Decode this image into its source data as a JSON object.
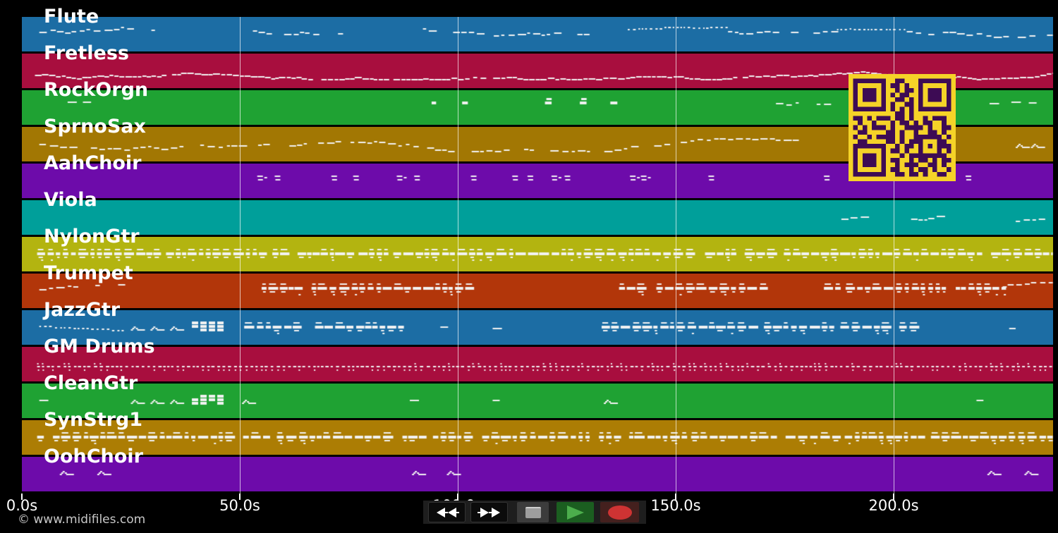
{
  "copyright": {
    "text": "© www.midifiles.com",
    "color": "#c8c8c8"
  },
  "axis": {
    "tick_color": "#ffffff",
    "label_color": "#ffffff",
    "gridline_color": "rgba(255,255,255,0.68)",
    "ticks": [
      {
        "value": 0,
        "label": "0.0s"
      },
      {
        "value": 50,
        "label": "50.0s"
      },
      {
        "value": 100,
        "label": "100.0s"
      },
      {
        "value": 150,
        "label": "150.0s"
      },
      {
        "value": 200,
        "label": "200.0s"
      }
    ]
  },
  "transport": {
    "strip_color": "#1e1e1e",
    "glyph_color": "#ffffff",
    "stop_tile": "#3c3c3c",
    "stop_square": "#9e9e9e",
    "play_tile": "#1b5e20",
    "play_glyph": "#4cae4c",
    "record_tile": "#44201e",
    "record_glyph": "#ce3333",
    "buttons": [
      {
        "id": "rewind"
      },
      {
        "id": "fast-forward"
      },
      {
        "id": "stop"
      },
      {
        "id": "play"
      },
      {
        "id": "record"
      }
    ]
  },
  "qr": {
    "light": "#f5d328",
    "dark": "#3d0b54",
    "matrix": [
      "111111100110001111111",
      "100000101101001000001",
      "101110100101101011101",
      "101110101011001011101",
      "101110100110101011101",
      "100000101001101000001",
      "111111101010101111111",
      "000000000110100000000",
      "110101110110100101110",
      "010010001011010110010",
      "101011101001111010011",
      "011000011010010011010",
      "100101111010011111101",
      "011000011010111000110",
      "111111100101101010111",
      "100000101101001000101",
      "101110100010111111110",
      "101110101100101101011",
      "101110100101110011010",
      "100000101100101101001",
      "111111100110110100110"
    ]
  },
  "chart_data": {
    "type": "midi-track-timeline",
    "x_unit": "seconds",
    "x_range": [
      0,
      236.5
    ],
    "x_tick_values": [
      0,
      50,
      100,
      150,
      200
    ],
    "x_tick_labels": [
      "0.0s",
      "50.0s",
      "100.0s",
      "150.0s",
      "200.0s"
    ],
    "grid": true,
    "note_color": "#f2f2f2",
    "tracks": [
      {
        "name": "Flute",
        "color": "#1c6da4",
        "cy": 0.38,
        "segments": [
          {
            "kind": "melody",
            "t": [
              4,
              31
            ]
          },
          {
            "kind": "melody",
            "t": [
              53,
              74
            ]
          },
          {
            "kind": "melody",
            "t": [
              92,
              131
            ]
          },
          {
            "kind": "dots",
            "t": [
              139,
              162
            ]
          },
          {
            "kind": "melody",
            "t": [
              162,
              186
            ]
          },
          {
            "kind": "dots",
            "t": [
              187,
              203
            ]
          },
          {
            "kind": "melody",
            "t": [
              203,
              236
            ]
          }
        ]
      },
      {
        "name": "Fretless",
        "color": "#a80e3e",
        "cy": 0.62,
        "segments": [
          {
            "kind": "bassline",
            "t": [
              3,
              236.5
            ]
          }
        ]
      },
      {
        "name": "RockOrgn",
        "color": "#1fa233",
        "cy": 0.33,
        "segments": [
          {
            "kind": "sparse",
            "times": [
              10.5,
              14
            ]
          },
          {
            "kind": "blocks",
            "times": [
              94,
              101,
              120,
              128,
              135
            ]
          },
          {
            "kind": "melody",
            "t": [
              173,
              186
            ]
          },
          {
            "kind": "sparse",
            "times": [
              222,
              227,
              231
            ]
          }
        ]
      },
      {
        "name": "SprnoSax",
        "color": "#a27703",
        "cy": 0.52,
        "segments": [
          {
            "kind": "melody",
            "t": [
              4,
              178
            ]
          },
          {
            "kind": "curls",
            "times": [
              228,
              231.5
            ]
          }
        ]
      },
      {
        "name": "AahChoir",
        "color": "#6d0baa",
        "cy": 0.42,
        "segments": [
          {
            "kind": "chords",
            "times": [
              54,
              58,
              71,
              76,
              86,
              90,
              103,
              112.5,
              116,
              121.5,
              124.5,
              139.5,
              142,
              157.5,
              184,
              190,
              212,
              216.5
            ]
          }
        ]
      },
      {
        "name": "Viola",
        "color": "#009f9a",
        "cy": 0.58,
        "segments": [
          {
            "kind": "melody",
            "t": [
              188,
              194
            ]
          },
          {
            "kind": "melody",
            "t": [
              204,
              210
            ]
          },
          {
            "kind": "melody",
            "t": [
              228,
              235.5
            ]
          }
        ]
      },
      {
        "name": "NylonGtr",
        "color": "#b3b410",
        "cy": 0.48,
        "segments": [
          {
            "kind": "dense",
            "t": [
              3.5,
              236.5
            ]
          }
        ]
      },
      {
        "name": "Trumpet",
        "color": "#b2360a",
        "cy": 0.42,
        "segments": [
          {
            "kind": "melody",
            "t": [
              4,
              23
            ]
          },
          {
            "kind": "dense",
            "t": [
              55,
              103
            ]
          },
          {
            "kind": "dense",
            "t": [
              137,
              170
            ]
          },
          {
            "kind": "dense",
            "t": [
              184,
              225
            ]
          },
          {
            "kind": "melody",
            "t": [
              225,
              236.5
            ]
          }
        ]
      },
      {
        "name": "JazzGtr",
        "color": "#1c6da4",
        "cy": 0.48,
        "segments": [
          {
            "kind": "dots",
            "t": [
              4,
              24
            ]
          },
          {
            "kind": "curls",
            "times": [
              25,
              29.5,
              34
            ]
          },
          {
            "kind": "blockcluster",
            "times": [
              39
            ]
          },
          {
            "kind": "dense",
            "t": [
              51,
              87
            ]
          },
          {
            "kind": "sparse",
            "times": [
              96,
              108
            ]
          },
          {
            "kind": "dense",
            "t": [
              133,
              204
            ]
          },
          {
            "kind": "sparse",
            "times": [
              226.5
            ]
          }
        ]
      },
      {
        "name": "GM Drums",
        "color": "#a80e3e",
        "cy": 0.55,
        "segments": [
          {
            "kind": "drums",
            "t": [
              3.5,
              236.5
            ]
          }
        ]
      },
      {
        "name": "CleanGtr",
        "color": "#1fa233",
        "cy": 0.48,
        "segments": [
          {
            "kind": "sparse",
            "times": [
              4
            ]
          },
          {
            "kind": "curls",
            "times": [
              25,
              29.5,
              34
            ]
          },
          {
            "kind": "blockcluster",
            "times": [
              39
            ]
          },
          {
            "kind": "curls",
            "times": [
              50.5
            ]
          },
          {
            "kind": "sparse",
            "times": [
              89,
              108
            ]
          },
          {
            "kind": "curls",
            "times": [
              133.5
            ]
          },
          {
            "kind": "sparse",
            "times": [
              219
            ]
          }
        ]
      },
      {
        "name": "SynStrg1",
        "color": "#ac7d04",
        "cy": 0.48,
        "segments": [
          {
            "kind": "dense",
            "t": [
              3.5,
              236.5
            ]
          }
        ]
      },
      {
        "name": "OohChoir",
        "color": "#6d0baa",
        "cy": 0.42,
        "segments": [
          {
            "kind": "curls",
            "times": [
              8.7,
              17.3,
              89.5,
              97.5,
              221.5,
              230
            ]
          }
        ]
      }
    ]
  }
}
